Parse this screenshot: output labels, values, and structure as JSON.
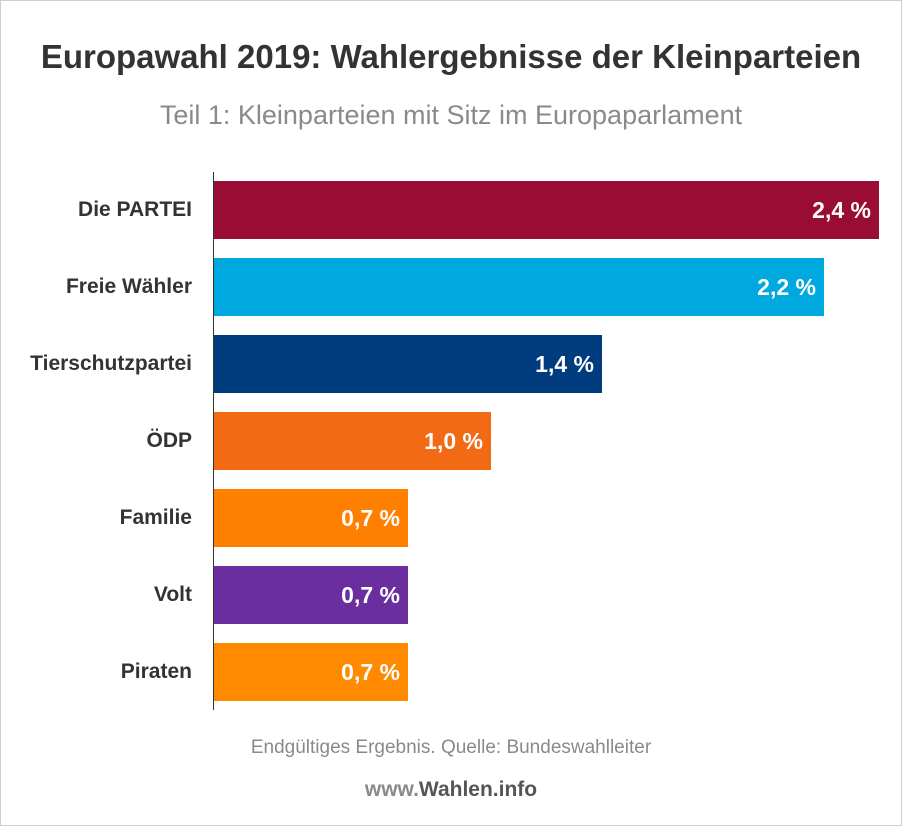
{
  "header": {
    "title": "Europawahl 2019: Wahlergebnisse der Kleinparteien",
    "subtitle": "Teil 1: Kleinparteien mit Sitz im Europaparlament"
  },
  "footer": {
    "source": "Endgültiges Ergebnis. Quelle: Bundeswahlleiter",
    "brand_prefix": "www.",
    "brand_name": "Wahlen.info"
  },
  "chart_data": {
    "type": "bar",
    "orientation": "horizontal",
    "title": "Europawahl 2019: Wahlergebnisse der Kleinparteien",
    "subtitle": "Teil 1: Kleinparteien mit Sitz im Europaparlament",
    "categories": [
      "Die PARTEI",
      "Freie Wähler",
      "Tierschutzpartei",
      "ÖDP",
      "Familie",
      "Volt",
      "Piraten"
    ],
    "values": [
      2.4,
      2.2,
      1.4,
      1.0,
      0.7,
      0.7,
      0.7
    ],
    "value_labels": [
      "2,4 %",
      "2,2 %",
      "1,4 %",
      "1,0 %",
      "0,7 %",
      "0,7 %",
      "0,7 %"
    ],
    "colors": [
      "#990c34",
      "#00a8e0",
      "#003c7e",
      "#f26a14",
      "#ff8000",
      "#6b2e9e",
      "#ff8a00"
    ],
    "xlim": [
      0,
      2.4
    ],
    "grid": false,
    "legend": "none"
  }
}
